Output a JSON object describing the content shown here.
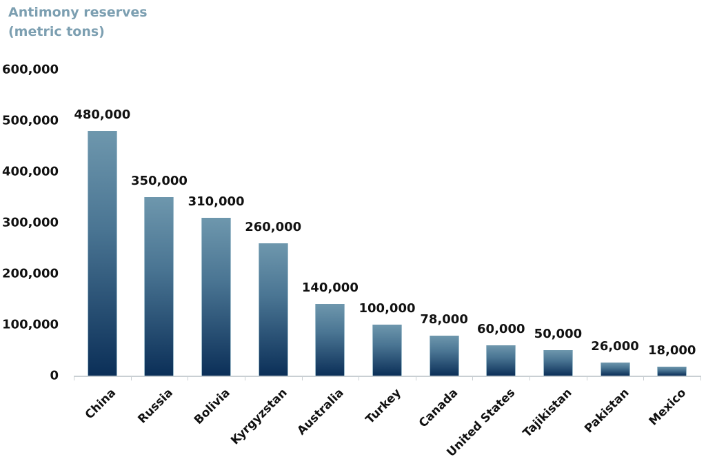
{
  "chart_data": {
    "type": "bar",
    "title": "",
    "ylabel": "Antimony reserves (metric tons)",
    "ylabel_lines": [
      "Antimony reserves",
      "(metric tons)"
    ],
    "xlabel": "",
    "ylim": [
      0,
      600000
    ],
    "yticks": [
      "0",
      "100,000",
      "200,000",
      "300,000",
      "400,000",
      "500,000",
      "600,000"
    ],
    "grid": false,
    "legend": null,
    "categories": [
      "China",
      "Russia",
      "Bolivia",
      "Kyrgyzstan",
      "Australia",
      "Turkey",
      "Canada",
      "United States",
      "Tajikistan",
      "Pakistan",
      "Mexico"
    ],
    "values": [
      480000,
      350000,
      310000,
      260000,
      140000,
      100000,
      78000,
      60000,
      50000,
      26000,
      18000
    ],
    "data_labels": [
      "480,000",
      "350,000",
      "310,000",
      "260,000",
      "140,000",
      "100,000",
      "78,000",
      "60,000",
      "50,000",
      "26,000",
      "18,000"
    ],
    "colors": {
      "bar_top": "#6e97ad",
      "bar_bottom": "#0b2f58",
      "title": "#7c9fb1",
      "axis": "#c9cfd3"
    }
  }
}
